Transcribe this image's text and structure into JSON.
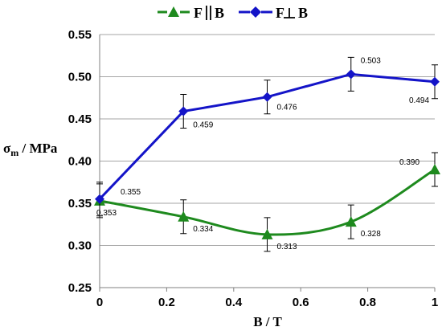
{
  "chart_data": {
    "type": "line",
    "xlabel": "B / T",
    "ylabel_main": "σ",
    "ylabel_sub": "m",
    "ylabel_rest": " / MPa",
    "xlim": [
      0,
      1
    ],
    "ylim": [
      0.25,
      0.55
    ],
    "x_ticks": [
      "0",
      "0.2",
      "0.4",
      "0.6",
      "0.8",
      "1"
    ],
    "y_ticks": [
      "0.25",
      "0.30",
      "0.35",
      "0.40",
      "0.45",
      "0.50",
      "0.55"
    ],
    "grid": "horizontal",
    "legend_position": "top",
    "series": [
      {
        "name": "F ∥ B",
        "name_left": "F",
        "name_right": "B",
        "marker": "triangle",
        "color": "#1e8a1e",
        "x": [
          0,
          0.25,
          0.5,
          0.75,
          1
        ],
        "y": [
          0.353,
          0.334,
          0.313,
          0.328,
          0.39
        ],
        "labels": [
          "0.353",
          "0.334",
          "0.313",
          "0.328",
          "0.390"
        ],
        "error": [
          0.02,
          0.02,
          0.02,
          0.02,
          0.02
        ]
      },
      {
        "name": "F ⊥ B",
        "name_left": "F",
        "name_right": "B",
        "marker": "diamond",
        "color": "#1414c8",
        "x": [
          0,
          0.25,
          0.5,
          0.75,
          1
        ],
        "y": [
          0.355,
          0.459,
          0.476,
          0.503,
          0.494
        ],
        "labels": [
          "0.355",
          "0.459",
          "0.476",
          "0.503",
          "0.494"
        ],
        "error": [
          0.02,
          0.02,
          0.02,
          0.02,
          0.02
        ]
      }
    ]
  }
}
